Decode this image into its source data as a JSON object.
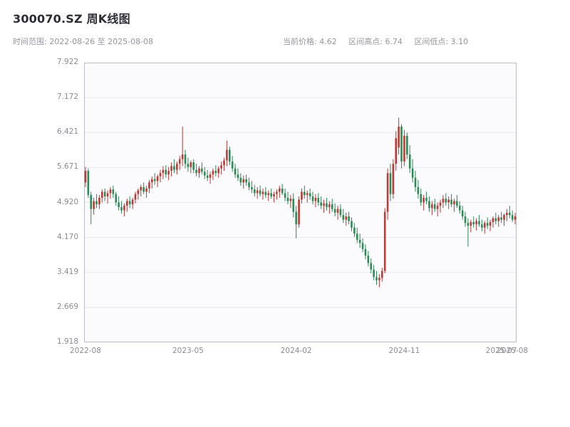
{
  "header": {
    "title": "300070.SZ 周K线图",
    "time_range": "时间范围: 2022-08-26 至 2025-08-08",
    "stats": {
      "current_price_label": "当前价格:",
      "current_price": "4.62",
      "range_high_label": "区间高点:",
      "range_high": "6.74",
      "range_low_label": "区间低点:",
      "range_low": "3.10"
    }
  },
  "chart_data": {
    "type": "candlestick",
    "title": "300070.SZ 周K线图",
    "x_unit": "week",
    "date_range": [
      "2022-08-26",
      "2025-08-08"
    ],
    "current_price": 4.62,
    "range_high": 6.74,
    "range_low": 3.1,
    "ylim": [
      1.918,
      7.922
    ],
    "grid": "horizontal",
    "legend": "none",
    "up_color": "#bf3a36",
    "down_color": "#2e8b57",
    "style": {
      "grid_color": "#e9e9ef",
      "spine_color": "#bcbcc4"
    },
    "y_ticks": [
      "1.918",
      "2.669",
      "3.419",
      "4.170",
      "4.920",
      "5.671",
      "6.421",
      "7.172",
      "7.922"
    ],
    "x_ticks": [
      {
        "label": "2022-08",
        "index": 0
      },
      {
        "label": "2023-05",
        "index": 37
      },
      {
        "label": "2024-02",
        "index": 76
      },
      {
        "label": "2024-11",
        "index": 115
      },
      {
        "label": "2025-07",
        "index": 150
      },
      {
        "label": "2025-08",
        "index": 154
      }
    ],
    "ohlc": [
      [
        5.35,
        5.68,
        5.25,
        5.6
      ],
      [
        5.6,
        5.65,
        5.02,
        5.08
      ],
      [
        5.08,
        5.15,
        4.45,
        4.78
      ],
      [
        4.78,
        5.02,
        4.66,
        4.95
      ],
      [
        4.95,
        5.1,
        4.8,
        4.88
      ],
      [
        4.88,
        5.08,
        4.78,
        5.02
      ],
      [
        5.02,
        5.2,
        4.92,
        5.15
      ],
      [
        5.15,
        5.22,
        4.95,
        5.05
      ],
      [
        5.05,
        5.18,
        4.9,
        5.12
      ],
      [
        5.12,
        5.25,
        5.0,
        5.2
      ],
      [
        5.2,
        5.28,
        5.02,
        5.1
      ],
      [
        5.1,
        5.15,
        4.85,
        4.92
      ],
      [
        4.92,
        5.05,
        4.75,
        4.82
      ],
      [
        4.82,
        4.95,
        4.68,
        4.75
      ],
      [
        4.75,
        4.9,
        4.62,
        4.85
      ],
      [
        4.85,
        5.0,
        4.72,
        4.95
      ],
      [
        4.95,
        5.05,
        4.8,
        4.88
      ],
      [
        4.88,
        5.02,
        4.78,
        4.98
      ],
      [
        4.98,
        5.15,
        4.9,
        5.1
      ],
      [
        5.1,
        5.22,
        4.98,
        5.18
      ],
      [
        5.18,
        5.3,
        5.05,
        5.25
      ],
      [
        5.25,
        5.35,
        5.1,
        5.15
      ],
      [
        5.15,
        5.28,
        5.02,
        5.22
      ],
      [
        5.22,
        5.4,
        5.12,
        5.35
      ],
      [
        5.35,
        5.48,
        5.22,
        5.42
      ],
      [
        5.42,
        5.55,
        5.3,
        5.38
      ],
      [
        5.38,
        5.52,
        5.25,
        5.48
      ],
      [
        5.48,
        5.62,
        5.35,
        5.55
      ],
      [
        5.55,
        5.7,
        5.42,
        5.62
      ],
      [
        5.62,
        5.72,
        5.45,
        5.52
      ],
      [
        5.52,
        5.68,
        5.4,
        5.6
      ],
      [
        5.6,
        5.78,
        5.48,
        5.7
      ],
      [
        5.7,
        5.85,
        5.55,
        5.62
      ],
      [
        5.62,
        5.8,
        5.52,
        5.75
      ],
      [
        5.75,
        5.92,
        5.62,
        5.85
      ],
      [
        5.85,
        6.55,
        5.7,
        5.95
      ],
      [
        5.95,
        6.05,
        5.65,
        5.75
      ],
      [
        5.75,
        5.88,
        5.58,
        5.68
      ],
      [
        5.68,
        5.82,
        5.55,
        5.78
      ],
      [
        5.78,
        5.85,
        5.55,
        5.62
      ],
      [
        5.62,
        5.75,
        5.48,
        5.55
      ],
      [
        5.55,
        5.7,
        5.45,
        5.65
      ],
      [
        5.65,
        5.78,
        5.52,
        5.58
      ],
      [
        5.58,
        5.68,
        5.42,
        5.5
      ],
      [
        5.5,
        5.62,
        5.38,
        5.45
      ],
      [
        5.45,
        5.58,
        5.32,
        5.52
      ],
      [
        5.52,
        5.65,
        5.4,
        5.6
      ],
      [
        5.6,
        5.72,
        5.48,
        5.55
      ],
      [
        5.55,
        5.7,
        5.45,
        5.65
      ],
      [
        5.65,
        5.8,
        5.52,
        5.72
      ],
      [
        5.72,
        5.88,
        5.6,
        5.82
      ],
      [
        5.82,
        6.25,
        5.7,
        6.05
      ],
      [
        6.05,
        6.12,
        5.72,
        5.8
      ],
      [
        5.8,
        5.92,
        5.58,
        5.65
      ],
      [
        5.65,
        5.75,
        5.45,
        5.52
      ],
      [
        5.52,
        5.65,
        5.38,
        5.45
      ],
      [
        5.45,
        5.55,
        5.28,
        5.35
      ],
      [
        5.35,
        5.5,
        5.22,
        5.42
      ],
      [
        5.42,
        5.52,
        5.28,
        5.35
      ],
      [
        5.35,
        5.45,
        5.18,
        5.25
      ],
      [
        5.25,
        5.38,
        5.12,
        5.2
      ],
      [
        5.2,
        5.3,
        5.05,
        5.12
      ],
      [
        5.12,
        5.25,
        5.0,
        5.18
      ],
      [
        5.18,
        5.28,
        5.05,
        5.1
      ],
      [
        5.1,
        5.22,
        4.98,
        5.15
      ],
      [
        5.15,
        5.25,
        5.02,
        5.08
      ],
      [
        5.08,
        5.18,
        4.95,
        5.12
      ],
      [
        5.12,
        5.22,
        5.0,
        5.05
      ],
      [
        5.05,
        5.15,
        4.92,
        5.1
      ],
      [
        5.1,
        5.2,
        4.98,
        5.15
      ],
      [
        5.15,
        5.28,
        5.02,
        5.22
      ],
      [
        5.22,
        5.32,
        5.08,
        5.12
      ],
      [
        5.12,
        5.22,
        4.95,
        5.02
      ],
      [
        5.02,
        5.15,
        4.88,
        4.95
      ],
      [
        4.95,
        5.08,
        4.8,
        5.0
      ],
      [
        5.0,
        5.12,
        4.6,
        4.72
      ],
      [
        4.72,
        4.85,
        4.15,
        4.45
      ],
      [
        4.45,
        5.05,
        4.38,
        4.98
      ],
      [
        4.98,
        5.22,
        4.9,
        5.15
      ],
      [
        5.15,
        5.28,
        5.0,
        5.08
      ],
      [
        5.08,
        5.18,
        4.92,
        5.12
      ],
      [
        5.12,
        5.22,
        4.98,
        5.05
      ],
      [
        5.05,
        5.15,
        4.88,
        4.95
      ],
      [
        4.95,
        5.1,
        4.82,
        5.02
      ],
      [
        5.02,
        5.12,
        4.85,
        4.92
      ],
      [
        4.92,
        5.05,
        4.78,
        4.85
      ],
      [
        4.85,
        4.98,
        4.7,
        4.9
      ],
      [
        4.9,
        5.02,
        4.75,
        4.82
      ],
      [
        4.82,
        4.95,
        4.68,
        4.88
      ],
      [
        4.88,
        5.0,
        4.72,
        4.78
      ],
      [
        4.78,
        4.9,
        4.62,
        4.7
      ],
      [
        4.7,
        4.85,
        4.55,
        4.78
      ],
      [
        4.78,
        4.88,
        4.6,
        4.65
      ],
      [
        4.65,
        4.78,
        4.48,
        4.55
      ],
      [
        4.55,
        4.7,
        4.42,
        4.62
      ],
      [
        4.62,
        4.72,
        4.45,
        4.52
      ],
      [
        4.52,
        4.6,
        4.3,
        4.38
      ],
      [
        4.38,
        4.48,
        4.18,
        4.25
      ],
      [
        4.25,
        4.38,
        4.05,
        4.12
      ],
      [
        4.12,
        4.25,
        3.95,
        4.05
      ],
      [
        4.05,
        4.15,
        3.85,
        3.92
      ],
      [
        3.92,
        4.02,
        3.7,
        3.78
      ],
      [
        3.78,
        3.88,
        3.55,
        3.62
      ],
      [
        3.62,
        3.72,
        3.4,
        3.48
      ],
      [
        3.48,
        3.58,
        3.25,
        3.32
      ],
      [
        3.32,
        3.45,
        3.15,
        3.25
      ],
      [
        3.25,
        3.38,
        3.1,
        3.3
      ],
      [
        3.3,
        3.52,
        3.22,
        3.45
      ],
      [
        3.45,
        4.8,
        3.4,
        4.72
      ],
      [
        4.72,
        5.65,
        4.55,
        5.55
      ],
      [
        5.55,
        5.75,
        4.95,
        5.1
      ],
      [
        5.1,
        5.85,
        5.0,
        5.75
      ],
      [
        5.75,
        6.45,
        5.6,
        6.3
      ],
      [
        6.1,
        6.74,
        5.95,
        6.55
      ],
      [
        6.55,
        6.6,
        5.65,
        5.8
      ],
      [
        5.8,
        6.48,
        5.7,
        6.35
      ],
      [
        6.35,
        6.42,
        5.85,
        5.95
      ],
      [
        5.95,
        6.15,
        5.55,
        5.65
      ],
      [
        5.65,
        5.85,
        5.35,
        5.45
      ],
      [
        5.45,
        5.6,
        5.15,
        5.25
      ],
      [
        5.25,
        5.4,
        5.0,
        5.1
      ],
      [
        5.1,
        5.22,
        4.85,
        4.92
      ],
      [
        4.92,
        5.08,
        4.75,
        5.02
      ],
      [
        5.02,
        5.15,
        4.88,
        4.95
      ],
      [
        4.95,
        5.05,
        4.72,
        4.8
      ],
      [
        4.8,
        4.95,
        4.65,
        4.88
      ],
      [
        4.88,
        5.0,
        4.72,
        4.78
      ],
      [
        4.78,
        4.92,
        4.62,
        4.85
      ],
      [
        4.85,
        4.98,
        4.7,
        4.92
      ],
      [
        4.92,
        5.08,
        4.8,
        5.0
      ],
      [
        5.0,
        5.12,
        4.85,
        4.92
      ],
      [
        4.92,
        5.05,
        4.78,
        4.98
      ],
      [
        4.98,
        5.1,
        4.82,
        4.88
      ],
      [
        4.88,
        5.0,
        4.72,
        4.95
      ],
      [
        4.95,
        5.08,
        4.8,
        4.85
      ],
      [
        4.85,
        4.95,
        4.68,
        4.75
      ],
      [
        4.75,
        4.85,
        4.55,
        4.62
      ],
      [
        4.62,
        4.72,
        4.4,
        4.48
      ],
      [
        4.48,
        4.58,
        3.97,
        4.42
      ],
      [
        4.42,
        4.55,
        4.28,
        4.5
      ],
      [
        4.5,
        4.62,
        4.38,
        4.45
      ],
      [
        4.45,
        4.58,
        4.32,
        4.52
      ],
      [
        4.52,
        4.65,
        4.4,
        4.45
      ],
      [
        4.45,
        4.55,
        4.3,
        4.38
      ],
      [
        4.38,
        4.52,
        4.25,
        4.48
      ],
      [
        4.48,
        4.6,
        4.35,
        4.42
      ],
      [
        4.42,
        4.55,
        4.3,
        4.5
      ],
      [
        4.5,
        4.62,
        4.38,
        4.58
      ],
      [
        4.58,
        4.7,
        4.45,
        4.52
      ],
      [
        4.52,
        4.65,
        4.4,
        4.6
      ],
      [
        4.6,
        4.72,
        4.48,
        4.55
      ],
      [
        4.55,
        4.68,
        4.42,
        4.65
      ],
      [
        4.65,
        4.78,
        4.52,
        4.7
      ],
      [
        4.7,
        4.85,
        4.58,
        4.65
      ],
      [
        4.65,
        4.75,
        4.5,
        4.55
      ],
      [
        4.55,
        4.7,
        4.45,
        4.62
      ]
    ]
  }
}
